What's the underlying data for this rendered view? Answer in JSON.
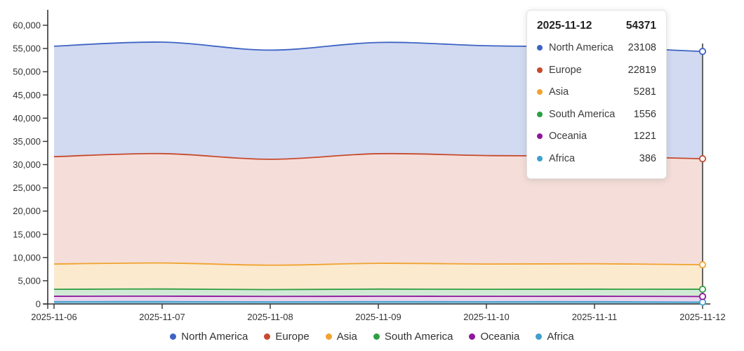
{
  "chart_data": {
    "type": "area",
    "stacked": true,
    "title": "",
    "x": [
      "2025-11-06",
      "2025-11-07",
      "2025-11-08",
      "2025-11-09",
      "2025-11-10",
      "2025-11-11",
      "2025-11-12"
    ],
    "series": [
      {
        "name": "North America",
        "color": "#3E63C4",
        "fill": "rgba(62,99,196,0.24)",
        "values": [
          23800,
          24000,
          23500,
          23950,
          23650,
          23500,
          23108
        ]
      },
      {
        "name": "Europe",
        "color": "#C64A2E",
        "fill": "rgba(198,74,46,0.18)",
        "values": [
          23100,
          23550,
          22800,
          23600,
          23350,
          23150,
          22819
        ]
      },
      {
        "name": "Asia",
        "color": "#F0A32F",
        "fill": "rgba(240,163,47,0.23)",
        "values": [
          5450,
          5600,
          5250,
          5550,
          5450,
          5470,
          5281
        ]
      },
      {
        "name": "South America",
        "color": "#2F9E44",
        "fill": "rgba(47,158,68,0.22)",
        "values": [
          1500,
          1540,
          1480,
          1540,
          1510,
          1530,
          1556
        ]
      },
      {
        "name": "Oceania",
        "color": "#8E169B",
        "fill": "rgba(142,22,155,0.18)",
        "values": [
          1170,
          1180,
          1170,
          1170,
          1170,
          1170,
          1221
        ]
      },
      {
        "name": "Africa",
        "color": "#3FA0CE",
        "fill": "rgba(63,160,206,0.55)",
        "values": [
          480,
          500,
          450,
          490,
          470,
          480,
          386
        ]
      }
    ],
    "stack_order": "reversed: Africa bottom, North America top",
    "smooth": true,
    "ylim": [
      0,
      60000
    ],
    "y_ticks": [
      0,
      5000,
      10000,
      15000,
      20000,
      25000,
      30000,
      35000,
      40000,
      45000,
      50000,
      55000,
      60000
    ],
    "grid": false,
    "legend_position": "bottom",
    "highlighted_x": "2025-11-12"
  },
  "tooltip": {
    "date": "2025-11-12",
    "total": "54371",
    "rows": [
      {
        "label": "North America",
        "value": "23108",
        "color": "#3E63C4"
      },
      {
        "label": "Europe",
        "value": "22819",
        "color": "#C64A2E"
      },
      {
        "label": "Asia",
        "value": "5281",
        "color": "#F0A32F"
      },
      {
        "label": "South America",
        "value": "1556",
        "color": "#2F9E44"
      },
      {
        "label": "Oceania",
        "value": "1221",
        "color": "#8E169B"
      },
      {
        "label": "Africa",
        "value": "386",
        "color": "#3FA0CE"
      }
    ]
  },
  "legend": {
    "items": [
      {
        "label": "North America",
        "color": "#3E63C4"
      },
      {
        "label": "Europe",
        "color": "#C64A2E"
      },
      {
        "label": "Asia",
        "color": "#F0A32F"
      },
      {
        "label": "South America",
        "color": "#2F9E44"
      },
      {
        "label": "Oceania",
        "color": "#8E169B"
      },
      {
        "label": "Africa",
        "color": "#3FA0CE"
      }
    ]
  },
  "colors": {
    "axis": "#333333",
    "crosshair": "#4a4a4a",
    "background": "#ffffff"
  }
}
